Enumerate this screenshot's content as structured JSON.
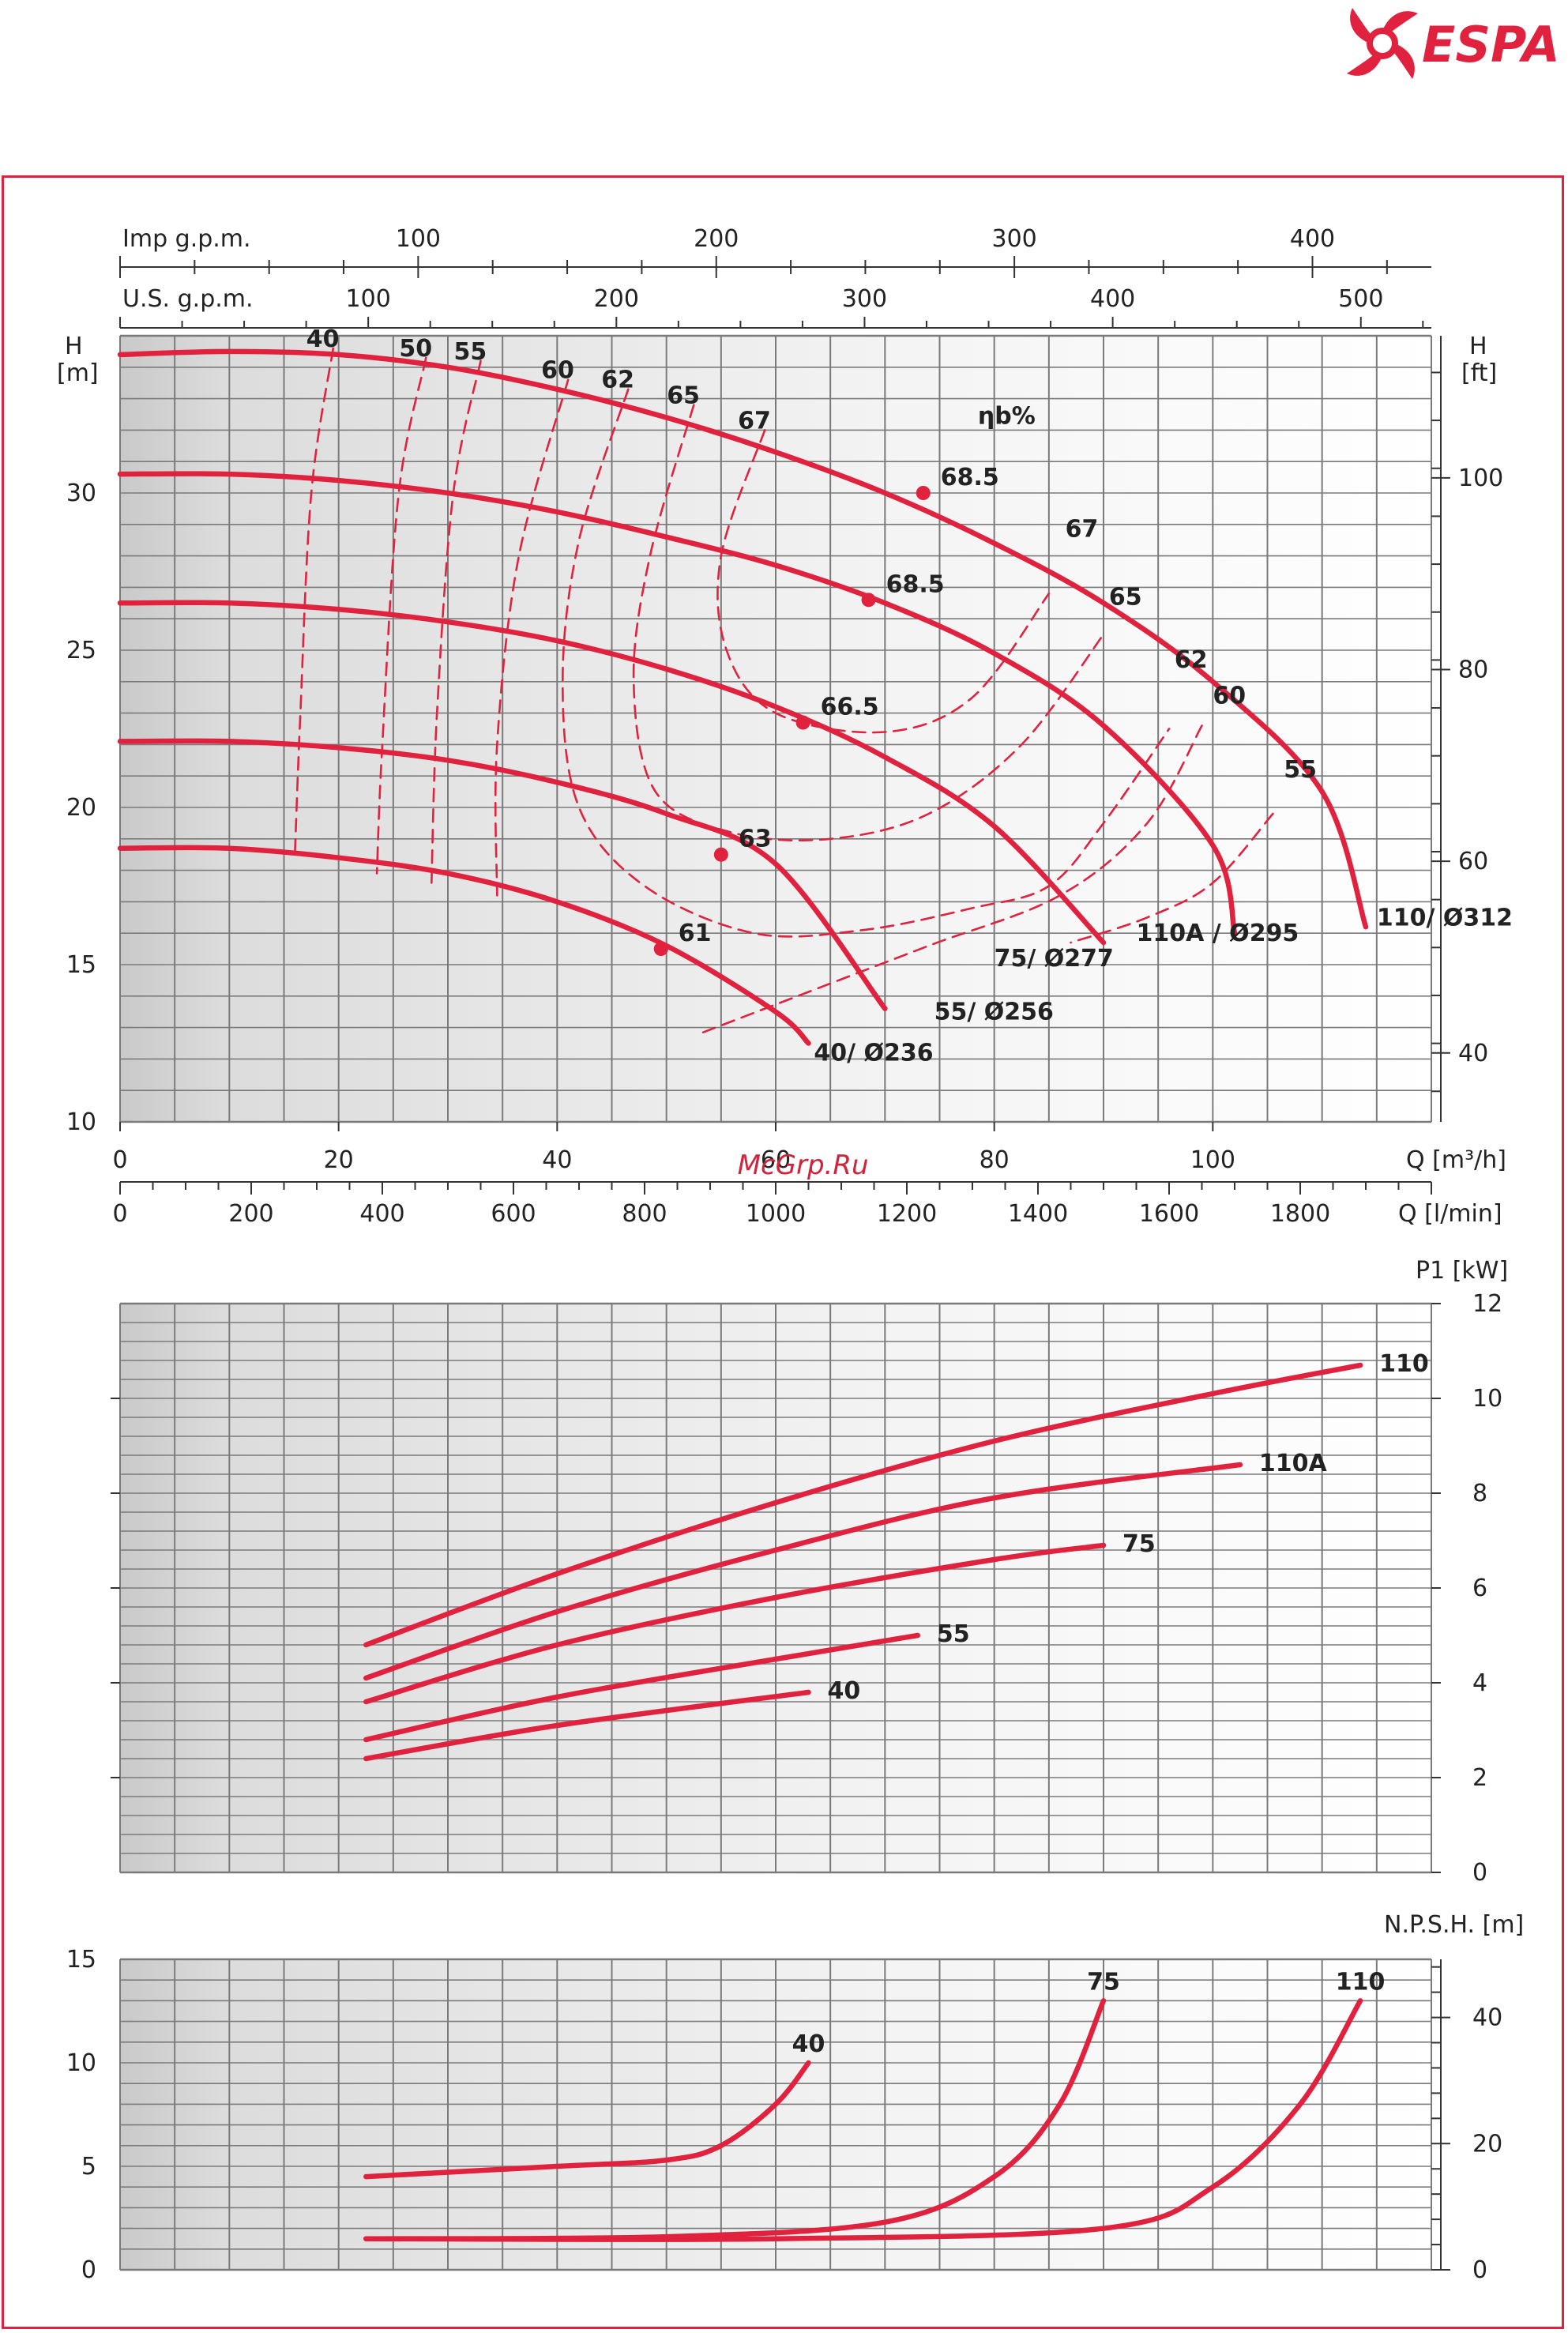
{
  "brand": {
    "name": "ESPA",
    "color": "#e0223f"
  },
  "watermark": "McGrp.Ru",
  "colors": {
    "curve": "#e0223f",
    "grid": "#7a7a7a",
    "text": "#222222"
  },
  "chart_data": [
    {
      "type": "line",
      "id": "head",
      "ylabel": "H\n[m]",
      "ylabel_right": "H\n[ft]",
      "x_unit": "Q [m³/h]",
      "x_unit_lmin": "Q [l/min]",
      "top_axis_imp": "Imp g.p.m.",
      "top_axis_us": "U.S. g.p.m.",
      "xlim": [
        0,
        120
      ],
      "ylim": [
        10,
        35
      ],
      "x_ticks": [
        0,
        20,
        40,
        60,
        80,
        100
      ],
      "y_ticks": [
        10,
        15,
        20,
        25,
        30
      ],
      "ft_ticks": [
        40,
        60,
        80,
        100
      ],
      "imp_ticks": [
        100,
        200,
        300,
        400
      ],
      "us_ticks": [
        100,
        200,
        300,
        400,
        500
      ],
      "lmin_ticks": [
        0,
        200,
        400,
        600,
        800,
        1000,
        1200,
        1400,
        1600,
        1800
      ],
      "efficiency_label": "ηb%",
      "series": [
        {
          "name": "110/ Ø312",
          "x": [
            0,
            10,
            20,
            30,
            40,
            50,
            60,
            70,
            80,
            90,
            100,
            110,
            114
          ],
          "y": [
            34.4,
            34.5,
            34.4,
            34.0,
            33.3,
            32.4,
            31.3,
            30.0,
            28.4,
            26.5,
            24.0,
            20.5,
            16.2
          ]
        },
        {
          "name": "110A / Ø295",
          "x": [
            0,
            10,
            20,
            30,
            40,
            50,
            60,
            70,
            80,
            90,
            100,
            102
          ],
          "y": [
            30.6,
            30.6,
            30.4,
            30.0,
            29.4,
            28.6,
            27.7,
            26.5,
            24.9,
            22.6,
            18.8,
            16.0
          ]
        },
        {
          "name": "75/ Ø277",
          "x": [
            0,
            10,
            20,
            30,
            40,
            50,
            60,
            70,
            80,
            90
          ],
          "y": [
            26.5,
            26.5,
            26.3,
            25.9,
            25.3,
            24.4,
            23.2,
            21.6,
            19.4,
            15.7
          ]
        },
        {
          "name": "55/ Ø256",
          "x": [
            0,
            10,
            20,
            30,
            40,
            50,
            60,
            70
          ],
          "y": [
            22.1,
            22.1,
            21.9,
            21.5,
            20.8,
            19.8,
            18.2,
            13.6
          ]
        },
        {
          "name": "40/ Ø236",
          "x": [
            0,
            10,
            20,
            30,
            40,
            50,
            60,
            63
          ],
          "y": [
            18.7,
            18.7,
            18.4,
            17.9,
            17.0,
            15.6,
            13.5,
            12.5
          ]
        }
      ],
      "bep_points": [
        {
          "label": "68.5",
          "x": 73.5,
          "y": 30.0
        },
        {
          "label": "68.5",
          "x": 68.5,
          "y": 26.6
        },
        {
          "label": "66.5",
          "x": 62.5,
          "y": 22.7
        },
        {
          "label": "63",
          "x": 55.0,
          "y": 18.5
        },
        {
          "label": "61",
          "x": 49.5,
          "y": 15.5
        }
      ],
      "efficiency_curves": [
        {
          "label": "40",
          "x": [
            19.5,
            17.5,
            16.5,
            16.0
          ],
          "y": [
            34.6,
            30.0,
            23.0,
            18.5
          ]
        },
        {
          "label": "50",
          "x": [
            28.0,
            25.5,
            24.0,
            23.5
          ],
          "y": [
            34.3,
            30.0,
            22.0,
            17.9
          ]
        },
        {
          "label": "55",
          "x": [
            33.0,
            30.5,
            29.0,
            28.5
          ],
          "y": [
            34.2,
            30.0,
            23.0,
            17.6
          ]
        },
        {
          "label": "60",
          "x": [
            41.0,
            36.5,
            34.5,
            34.5
          ],
          "y": [
            33.6,
            28.0,
            22.0,
            17.2
          ]
        }
      ],
      "efficiency_loops": [
        {
          "label": "62",
          "x": [
            46.5,
            42.0,
            40.5,
            42.0,
            48.0,
            58.0,
            68.0,
            78.0,
            85.0,
            90.0,
            96.0
          ],
          "y": [
            33.3,
            28.5,
            24.0,
            20.0,
            17.5,
            16.0,
            16.1,
            16.8,
            17.5,
            19.5,
            22.5
          ]
        },
        {
          "label": "65",
          "x": [
            52.5,
            48.5,
            47.0,
            49.0,
            56.0,
            65.0,
            74.0,
            82.5,
            90.0
          ],
          "y": [
            32.8,
            28.0,
            24.0,
            20.5,
            19.2,
            19.0,
            19.8,
            22.0,
            25.5
          ]
        },
        {
          "label": "67",
          "x": [
            59.0,
            55.0,
            55.5,
            60.0,
            70.0,
            78.0,
            85.0
          ],
          "y": [
            32.0,
            28.0,
            25.0,
            23.0,
            22.4,
            23.5,
            26.8
          ]
        },
        {
          "label": "60",
          "x": [
            99.0,
            94.0,
            86.0,
            74.0,
            62.0,
            53.0
          ],
          "y": [
            22.6,
            19.5,
            17.2,
            15.6,
            14.0,
            12.8
          ]
        },
        {
          "label": "55",
          "x": [
            105.5,
            100.0,
            94.0,
            87.0
          ],
          "y": [
            19.8,
            17.6,
            16.5,
            15.7
          ]
        }
      ]
    },
    {
      "type": "line",
      "id": "power",
      "ylabel": "P1 [kW]",
      "xlim": [
        0,
        120
      ],
      "ylim": [
        0,
        12
      ],
      "y_ticks": [
        0,
        2,
        4,
        6,
        8,
        10,
        12
      ],
      "series": [
        {
          "name": "110",
          "x": [
            22.5,
            40,
            60,
            80,
            100,
            113.5
          ],
          "y": [
            4.8,
            6.3,
            7.8,
            9.1,
            10.1,
            10.7
          ]
        },
        {
          "name": "110A",
          "x": [
            22.5,
            40,
            60,
            80,
            102.5
          ],
          "y": [
            4.1,
            5.5,
            6.8,
            7.9,
            8.6
          ]
        },
        {
          "name": "75",
          "x": [
            22.5,
            40,
            60,
            80,
            90
          ],
          "y": [
            3.6,
            4.8,
            5.8,
            6.6,
            6.9
          ]
        },
        {
          "name": "55",
          "x": [
            22.5,
            40,
            60,
            73
          ],
          "y": [
            2.8,
            3.7,
            4.5,
            5.0
          ]
        },
        {
          "name": "40",
          "x": [
            22.5,
            40,
            63
          ],
          "y": [
            2.4,
            3.1,
            3.8
          ]
        }
      ]
    },
    {
      "type": "line",
      "id": "npsh",
      "ylabel": "N.P.S.H. [m]",
      "xlim": [
        0,
        120
      ],
      "ylim": [
        0,
        15
      ],
      "y_ticks": [
        0,
        5,
        10,
        15
      ],
      "ft_ticks": [
        0,
        20,
        40
      ],
      "series": [
        {
          "name": "40",
          "x": [
            22.5,
            40,
            50,
            55,
            60,
            63
          ],
          "y": [
            4.5,
            5.0,
            5.3,
            6.0,
            8.0,
            10.0
          ]
        },
        {
          "name": "75",
          "x": [
            22.5,
            50,
            70,
            80,
            86,
            90
          ],
          "y": [
            1.5,
            1.6,
            2.3,
            4.5,
            8.0,
            13.0
          ]
        },
        {
          "name": "110",
          "x": [
            22.5,
            60,
            90,
            100,
            108,
            113.5
          ],
          "y": [
            1.5,
            1.5,
            2.0,
            4.0,
            8.0,
            13.0
          ]
        }
      ]
    }
  ]
}
